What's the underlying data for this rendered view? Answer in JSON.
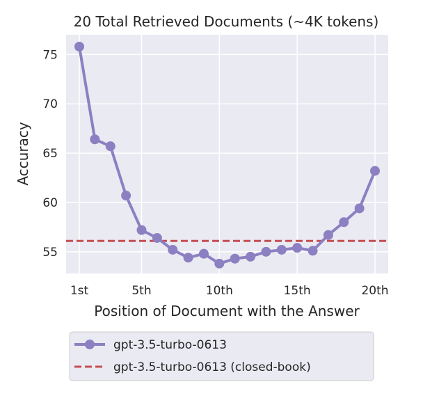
{
  "chart_data": {
    "type": "line",
    "title": "20 Total Retrieved Documents (~4K tokens)",
    "xlabel": "Position of Document with the Answer",
    "ylabel": "Accuracy",
    "x": [
      1,
      2,
      3,
      4,
      5,
      6,
      7,
      8,
      9,
      10,
      11,
      12,
      13,
      14,
      15,
      16,
      17,
      18,
      19,
      20
    ],
    "x_ticks": [
      {
        "value": 1,
        "label": "1st"
      },
      {
        "value": 5,
        "label": "5th"
      },
      {
        "value": 10,
        "label": "10th"
      },
      {
        "value": 15,
        "label": "15th"
      },
      {
        "value": 20,
        "label": "20th"
      }
    ],
    "y_ticks": [
      55,
      60,
      65,
      70,
      75
    ],
    "xlim": [
      0.15,
      20.85
    ],
    "ylim": [
      52.8,
      77.0
    ],
    "grid": true,
    "legend_position": "bottom",
    "series": [
      {
        "name": "gpt-3.5-turbo-0613",
        "color": "#8c80c2",
        "style": "solid-with-markers",
        "values": [
          75.8,
          66.4,
          65.7,
          60.7,
          57.2,
          56.4,
          55.2,
          54.4,
          54.8,
          53.8,
          54.3,
          54.5,
          55.0,
          55.2,
          55.4,
          55.1,
          56.7,
          58.0,
          59.4,
          63.2
        ]
      },
      {
        "name": "gpt-3.5-turbo-0613 (closed-book)",
        "color": "#c44e52",
        "style": "dashed",
        "value": 56.1
      }
    ]
  }
}
